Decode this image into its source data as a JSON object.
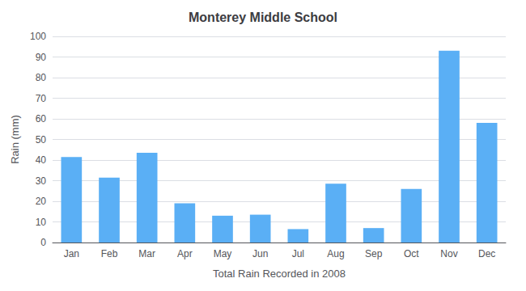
{
  "chart_data": {
    "type": "bar",
    "title": "Monterey Middle School",
    "xlabel": "Total Rain Recorded in 2008",
    "ylabel": "Rain (mm)",
    "categories": [
      "Jan",
      "Feb",
      "Mar",
      "Apr",
      "May",
      "Jun",
      "Jul",
      "Aug",
      "Sep",
      "Oct",
      "Nov",
      "Dec"
    ],
    "values": [
      41.5,
      31.5,
      43.5,
      19.0,
      13.0,
      13.5,
      6.5,
      28.5,
      7.0,
      26.0,
      93.0,
      58.0
    ],
    "color": "#5aaff5",
    "ylim": [
      0,
      100
    ],
    "yticks": [
      0,
      10,
      20,
      30,
      40,
      50,
      60,
      70,
      80,
      90,
      100
    ],
    "grid": true
  }
}
